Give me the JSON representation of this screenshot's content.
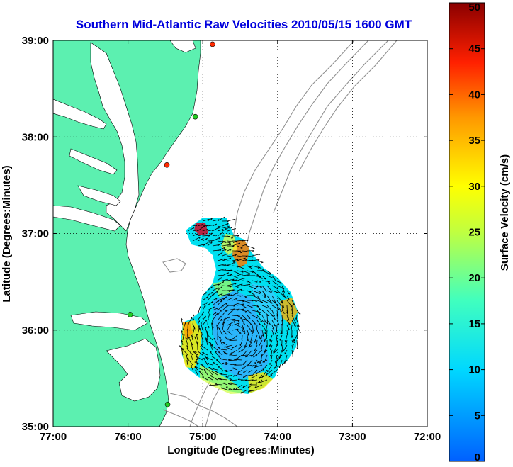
{
  "chart_data": {
    "type": "heatmap",
    "title": "Southern Mid-Atlantic Raw Velocities 2010/05/15 1600 GMT",
    "xlabel": "Longitude (Degrees:Minutes)",
    "ylabel": "Latitude (Degrees:Minutes)",
    "x_tick_labels": [
      "77:00",
      "76:00",
      "75:00",
      "74:00",
      "73:00",
      "72:00"
    ],
    "x_tick_values": [
      -77,
      -76,
      -75,
      -74,
      -73,
      -72
    ],
    "y_tick_labels": [
      "39:00",
      "38:00",
      "37:00",
      "36:00",
      "35:00"
    ],
    "y_tick_values": [
      39,
      38,
      37,
      36,
      35
    ],
    "xlim": [
      -77,
      -72
    ],
    "ylim": [
      35,
      39
    ],
    "grid": true,
    "colorbar": {
      "label": "Surface Velocity (cm/s)",
      "range": [
        0,
        50
      ],
      "tick_labels": [
        "0",
        "5",
        "10",
        "15",
        "20",
        "25",
        "30",
        "35",
        "40",
        "45",
        "50"
      ],
      "tick_values": [
        0,
        5,
        10,
        15,
        20,
        25,
        30,
        35,
        40,
        45,
        50
      ]
    },
    "stations": [
      {
        "lon": -74.87,
        "lat": 38.96,
        "color": "#ff2a00"
      },
      {
        "lon": -75.1,
        "lat": 38.21,
        "color": "#22cc22"
      },
      {
        "lon": -75.48,
        "lat": 37.71,
        "color": "#ff2a00"
      },
      {
        "lon": -75.97,
        "lat": 36.16,
        "color": "#22cc22"
      },
      {
        "lon": -75.47,
        "lat": 35.23,
        "color": "#22cc22"
      }
    ],
    "colors": {
      "land": "#5cf0b0",
      "title": "#0000dd",
      "contour": "#909090",
      "station_green": "#22cc22",
      "station_red": "#ff2a00"
    }
  }
}
